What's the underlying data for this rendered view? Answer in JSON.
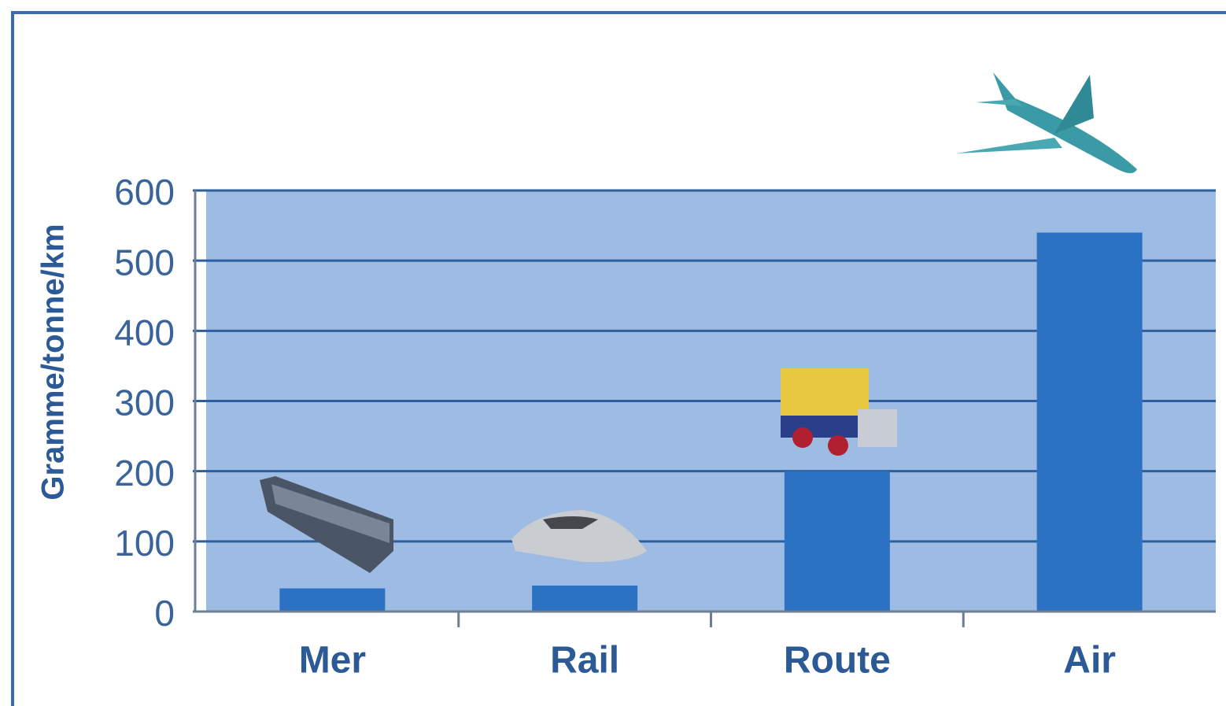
{
  "chart_data": {
    "type": "bar",
    "y_label": "Gramme/tonne/km",
    "categories": [
      "Mer",
      "Rail",
      "Route",
      "Air"
    ],
    "values": [
      33,
      37,
      200,
      540
    ],
    "color": "#2b72c3",
    "ylim": [
      0,
      600
    ],
    "yticks": [
      0,
      100,
      200,
      300,
      400,
      500,
      600
    ],
    "grid": true
  }
}
